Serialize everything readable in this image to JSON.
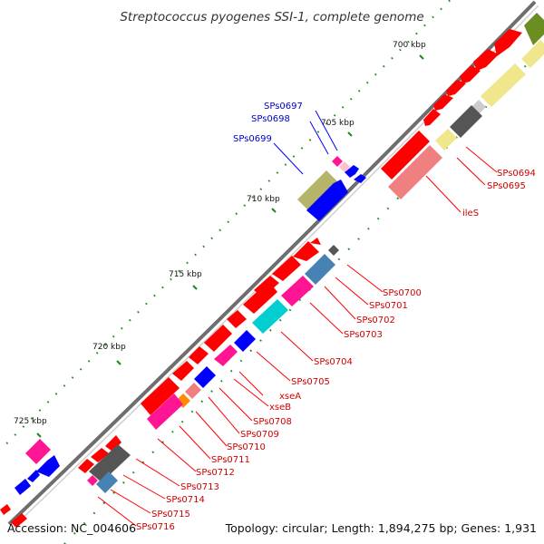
{
  "title": "Streptococcus pyogenes SSI-1, complete genome",
  "footer": {
    "accession": "Accession: NC_004606",
    "topology": "Topology: circular; Length: 1,894,275 bp; Genes: 1,931"
  },
  "scale_labels": [
    "700 kbp",
    "705 kbp",
    "710 kbp",
    "715 kbp",
    "720 kbp",
    "725 kbp"
  ],
  "gene_labels_right": [
    "SPs0694",
    "SPs0695",
    "ileS",
    "SPs0700",
    "SPs0701",
    "SPs0702",
    "SPs0703",
    "SPs0704",
    "SPs0705",
    "xseA",
    "xseB",
    "SPs0708",
    "SPs0709",
    "SPs0710",
    "SPs0711",
    "SPs0712",
    "SPs0713",
    "SPs0714",
    "SPs0715",
    "SPs0716"
  ],
  "gene_labels_left": [
    "SPs0697",
    "SPs0698",
    "SPs0699"
  ],
  "colors": {
    "forward_cds": "#ff0000",
    "reverse_cds": "#0000ff",
    "label_red": "#d00000",
    "label_blue": "#0000cc",
    "tick_green": "#1a8a1a",
    "backbone": "#777777"
  }
}
